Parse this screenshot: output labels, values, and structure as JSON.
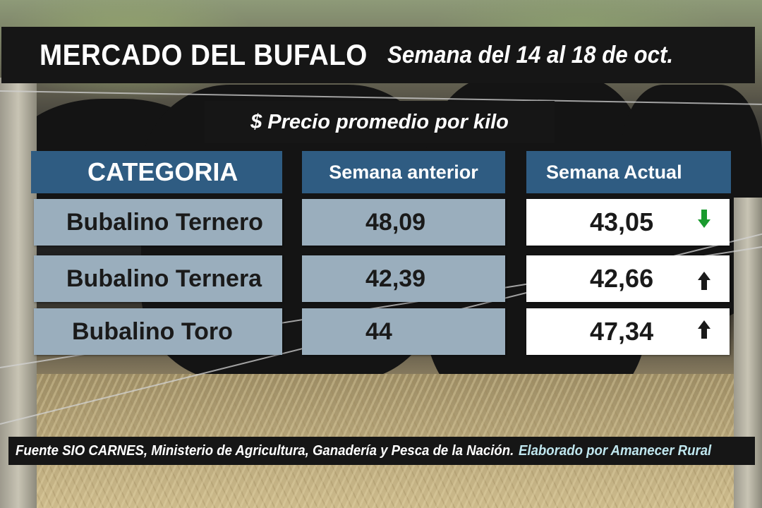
{
  "header": {
    "title": "MERCADO DEL BUFALO",
    "week": "Semana del 14 al 18 de oct."
  },
  "subtitle": "$ Precio promedio por kilo",
  "table": {
    "columns": [
      "CATEGORIA",
      "Semana anterior",
      "Semana Actual"
    ],
    "rows": [
      {
        "category": "Bubalino Ternero",
        "previous": "48,09",
        "current": "43,05",
        "trend": "down",
        "trend_color": "#1a9a2e",
        "trend_icon": "arrow-down-icon"
      },
      {
        "category": "Bubalino Ternera",
        "previous": "42,39",
        "current": "42,66",
        "trend": "up",
        "trend_color": "#1a1a1a",
        "trend_icon": "arrow-up-icon"
      },
      {
        "category": "Bubalino Toro",
        "previous": "44",
        "current": "47,34",
        "trend": "up",
        "trend_color": "#1a1a1a",
        "trend_icon": "arrow-up-icon"
      }
    ]
  },
  "footer": {
    "source": "Fuente SIO CARNES,  Ministerio de Agricultura, Ganadería y Pesca de la Nación.",
    "credit": "Elaborado por  Amanecer Rural"
  },
  "colors": {
    "header_fill": "#2f5c82",
    "cell_fill": "#9aaebd",
    "current_fill": "#ffffff",
    "bar_fill": "#161616",
    "credit_text": "#bfe6ee"
  }
}
